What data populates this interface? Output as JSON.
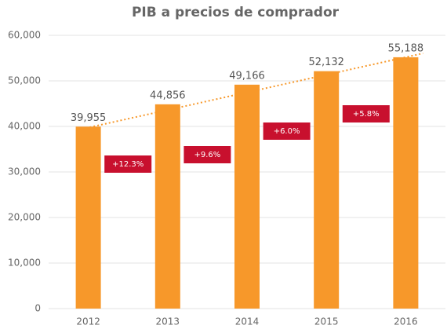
{
  "chart_data": {
    "type": "bar",
    "title": "PIB  a precios de comprador",
    "categories": [
      "2012",
      "2013",
      "2014",
      "2015",
      "2016"
    ],
    "values": [
      39955,
      44856,
      49166,
      52132,
      55188
    ],
    "value_labels": [
      "39,955",
      "44,856",
      "49,166",
      "52,132",
      "55,188"
    ],
    "color": "#f7982a",
    "ylim": [
      0,
      60000
    ],
    "yticks": [
      0,
      {
        "value": 10000,
        "label": "10,000"
      },
      {
        "value": 20000,
        "label": "20,000"
      },
      {
        "value": 30000,
        "label": "30,000"
      },
      {
        "value": 40000,
        "label": "40,000"
      },
      {
        "value": 50000,
        "label": "50,000"
      },
      {
        "value": 60000,
        "label": "60,000"
      }
    ],
    "grid": true,
    "annotations": [
      "+12.3%",
      "+9.6%",
      "+6.0%",
      "+5.8%"
    ]
  }
}
